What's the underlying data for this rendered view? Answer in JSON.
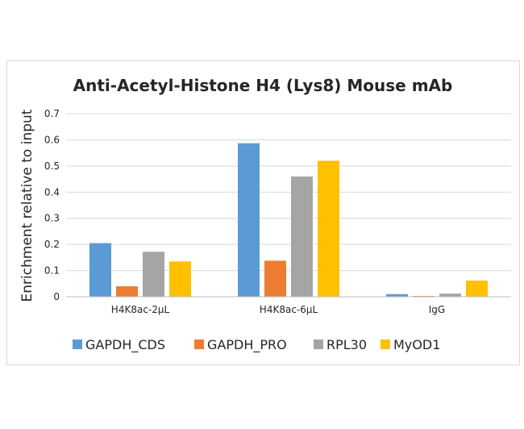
{
  "chart_data": {
    "type": "bar",
    "title": "Anti-Acetyl-Histone H4 (Lys8) Mouse mAb",
    "xlabel": "",
    "ylabel": "Enrichment relative to input",
    "ylim": [
      0,
      0.7
    ],
    "yticks": [
      "0",
      "0.1",
      "0.2",
      "0.3",
      "0.4",
      "0.5",
      "0.6",
      "0.7"
    ],
    "grid": true,
    "legend_position": "bottom",
    "categories": [
      "H4K8ac-2μL",
      "H4K8ac-6μL",
      "IgG"
    ],
    "series": [
      {
        "name": "GAPDH_CDS",
        "color": "#5b9bd5",
        "values": [
          0.205,
          0.587,
          0.01
        ]
      },
      {
        "name": "GAPDH_PRO",
        "color": "#ed7d31",
        "values": [
          0.04,
          0.138,
          0.003
        ]
      },
      {
        "name": "RPL30",
        "color": "#a5a5a5",
        "values": [
          0.172,
          0.46,
          0.012
        ]
      },
      {
        "name": "MyOD1",
        "color": "#ffc000",
        "values": [
          0.135,
          0.52,
          0.062
        ]
      }
    ]
  }
}
